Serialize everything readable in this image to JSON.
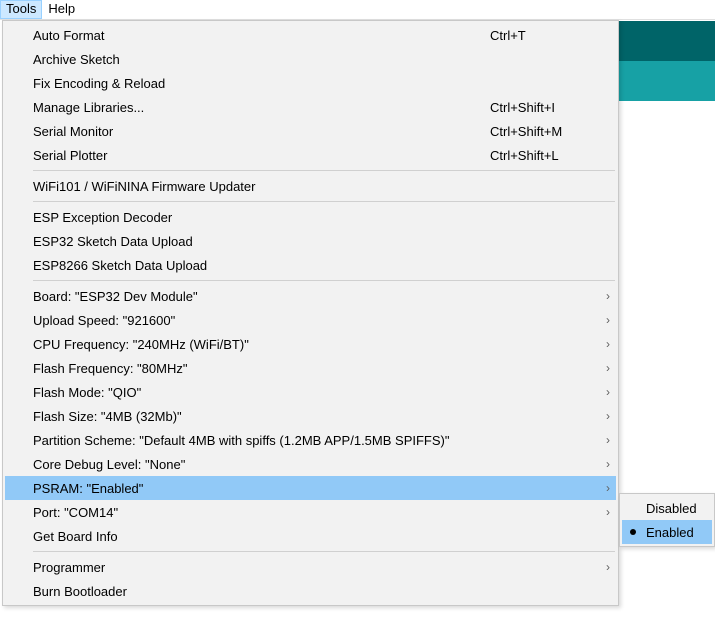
{
  "menubar": {
    "tools": "Tools",
    "help": "Help"
  },
  "menu": {
    "groups": [
      [
        {
          "label": "Auto Format",
          "shortcut": "Ctrl+T",
          "sub": false
        },
        {
          "label": "Archive Sketch",
          "shortcut": "",
          "sub": false
        },
        {
          "label": "Fix Encoding & Reload",
          "shortcut": "",
          "sub": false
        },
        {
          "label": "Manage Libraries...",
          "shortcut": "Ctrl+Shift+I",
          "sub": false
        },
        {
          "label": "Serial Monitor",
          "shortcut": "Ctrl+Shift+M",
          "sub": false
        },
        {
          "label": "Serial Plotter",
          "shortcut": "Ctrl+Shift+L",
          "sub": false
        }
      ],
      [
        {
          "label": "WiFi101 / WiFiNINA Firmware Updater",
          "shortcut": "",
          "sub": false
        }
      ],
      [
        {
          "label": "ESP Exception Decoder",
          "shortcut": "",
          "sub": false
        },
        {
          "label": "ESP32 Sketch Data Upload",
          "shortcut": "",
          "sub": false
        },
        {
          "label": "ESP8266 Sketch Data Upload",
          "shortcut": "",
          "sub": false
        }
      ],
      [
        {
          "label": "Board: \"ESP32 Dev Module\"",
          "shortcut": "",
          "sub": true
        },
        {
          "label": "Upload Speed: \"921600\"",
          "shortcut": "",
          "sub": true
        },
        {
          "label": "CPU Frequency: \"240MHz (WiFi/BT)\"",
          "shortcut": "",
          "sub": true
        },
        {
          "label": "Flash Frequency: \"80MHz\"",
          "shortcut": "",
          "sub": true
        },
        {
          "label": "Flash Mode: \"QIO\"",
          "shortcut": "",
          "sub": true
        },
        {
          "label": "Flash Size: \"4MB (32Mb)\"",
          "shortcut": "",
          "sub": true
        },
        {
          "label": "Partition Scheme: \"Default 4MB with spiffs (1.2MB APP/1.5MB SPIFFS)\"",
          "shortcut": "",
          "sub": true
        },
        {
          "label": "Core Debug Level: \"None\"",
          "shortcut": "",
          "sub": true
        },
        {
          "label": "PSRAM: \"Enabled\"",
          "shortcut": "",
          "sub": true,
          "highlight": true
        },
        {
          "label": "Port: \"COM14\"",
          "shortcut": "",
          "sub": true
        },
        {
          "label": "Get Board Info",
          "shortcut": "",
          "sub": false
        }
      ],
      [
        {
          "label": "Programmer",
          "shortcut": "",
          "sub": true
        },
        {
          "label": "Burn Bootloader",
          "shortcut": "",
          "sub": false
        }
      ]
    ]
  },
  "submenu": {
    "items": [
      {
        "label": "Disabled",
        "selected": false,
        "highlight": false
      },
      {
        "label": "Enabled",
        "selected": true,
        "highlight": true
      }
    ]
  },
  "colors": {
    "highlight": "#91c9f7",
    "menubg": "#f2f2f2",
    "stripe1": "#006468",
    "stripe2": "#17a1a5"
  }
}
